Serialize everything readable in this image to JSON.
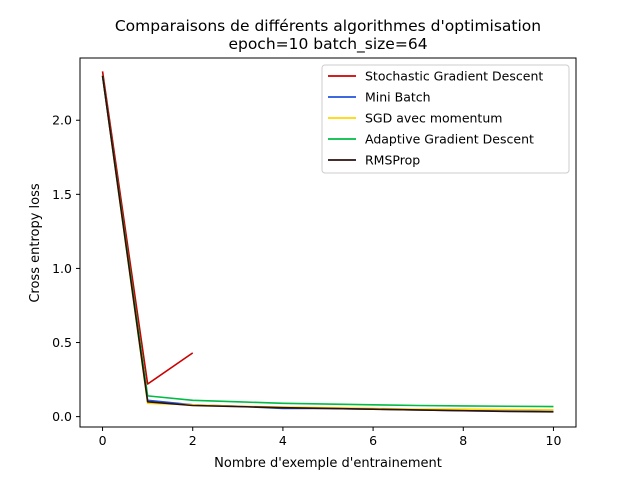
{
  "chart_data": {
    "type": "line",
    "title": "Comparaisons de différents algorithmes d'optimisation",
    "subtitle": "epoch=10 batch_size=64",
    "xlabel": "Nombre d'exemple d'entrainement",
    "ylabel": "Cross entropy loss",
    "xlim": [
      -0.5,
      10.5
    ],
    "ylim": [
      -0.07,
      2.42
    ],
    "xticks": [
      0,
      2,
      4,
      6,
      8,
      10
    ],
    "xtick_labels": [
      "0",
      "2",
      "4",
      "6",
      "8",
      "10"
    ],
    "yticks": [
      0.0,
      0.5,
      1.0,
      1.5,
      2.0
    ],
    "ytick_labels": [
      "0.0",
      "0.5",
      "1.0",
      "1.5",
      "2.0"
    ],
    "grid": false,
    "legend_position": "top-right",
    "series": [
      {
        "name": "Stochastic Gradient Descent",
        "color": "#cc0000",
        "x": [
          0,
          1,
          2
        ],
        "y": [
          2.33,
          0.22,
          0.43
        ]
      },
      {
        "name": "Mini Batch",
        "color": "#2255dd",
        "x": [
          0,
          1,
          2,
          3,
          4,
          5,
          6,
          7,
          8,
          9,
          10
        ],
        "y": [
          2.3,
          0.11,
          0.08,
          0.07,
          0.055,
          0.055,
          0.05,
          0.045,
          0.04,
          0.038,
          0.035
        ]
      },
      {
        "name": "SGD avec momentum",
        "color": "#ffd700",
        "x": [
          0,
          1,
          2,
          3,
          4,
          5,
          6,
          7,
          8,
          9,
          10
        ],
        "y": [
          2.3,
          0.09,
          0.08,
          0.07,
          0.065,
          0.06,
          0.055,
          0.05,
          0.05,
          0.048,
          0.045
        ]
      },
      {
        "name": "Adaptive Gradient Descent",
        "color": "#00bb44",
        "x": [
          0,
          1,
          2,
          3,
          4,
          5,
          6,
          7,
          8,
          9,
          10
        ],
        "y": [
          2.3,
          0.14,
          0.11,
          0.1,
          0.09,
          0.085,
          0.08,
          0.075,
          0.072,
          0.07,
          0.068
        ]
      },
      {
        "name": "RMSProp",
        "color": "#2a1010",
        "x": [
          0,
          1,
          2,
          3,
          4,
          5,
          6,
          7,
          8,
          9,
          10
        ],
        "y": [
          2.3,
          0.1,
          0.075,
          0.068,
          0.06,
          0.055,
          0.05,
          0.045,
          0.04,
          0.035,
          0.032
        ]
      }
    ]
  }
}
